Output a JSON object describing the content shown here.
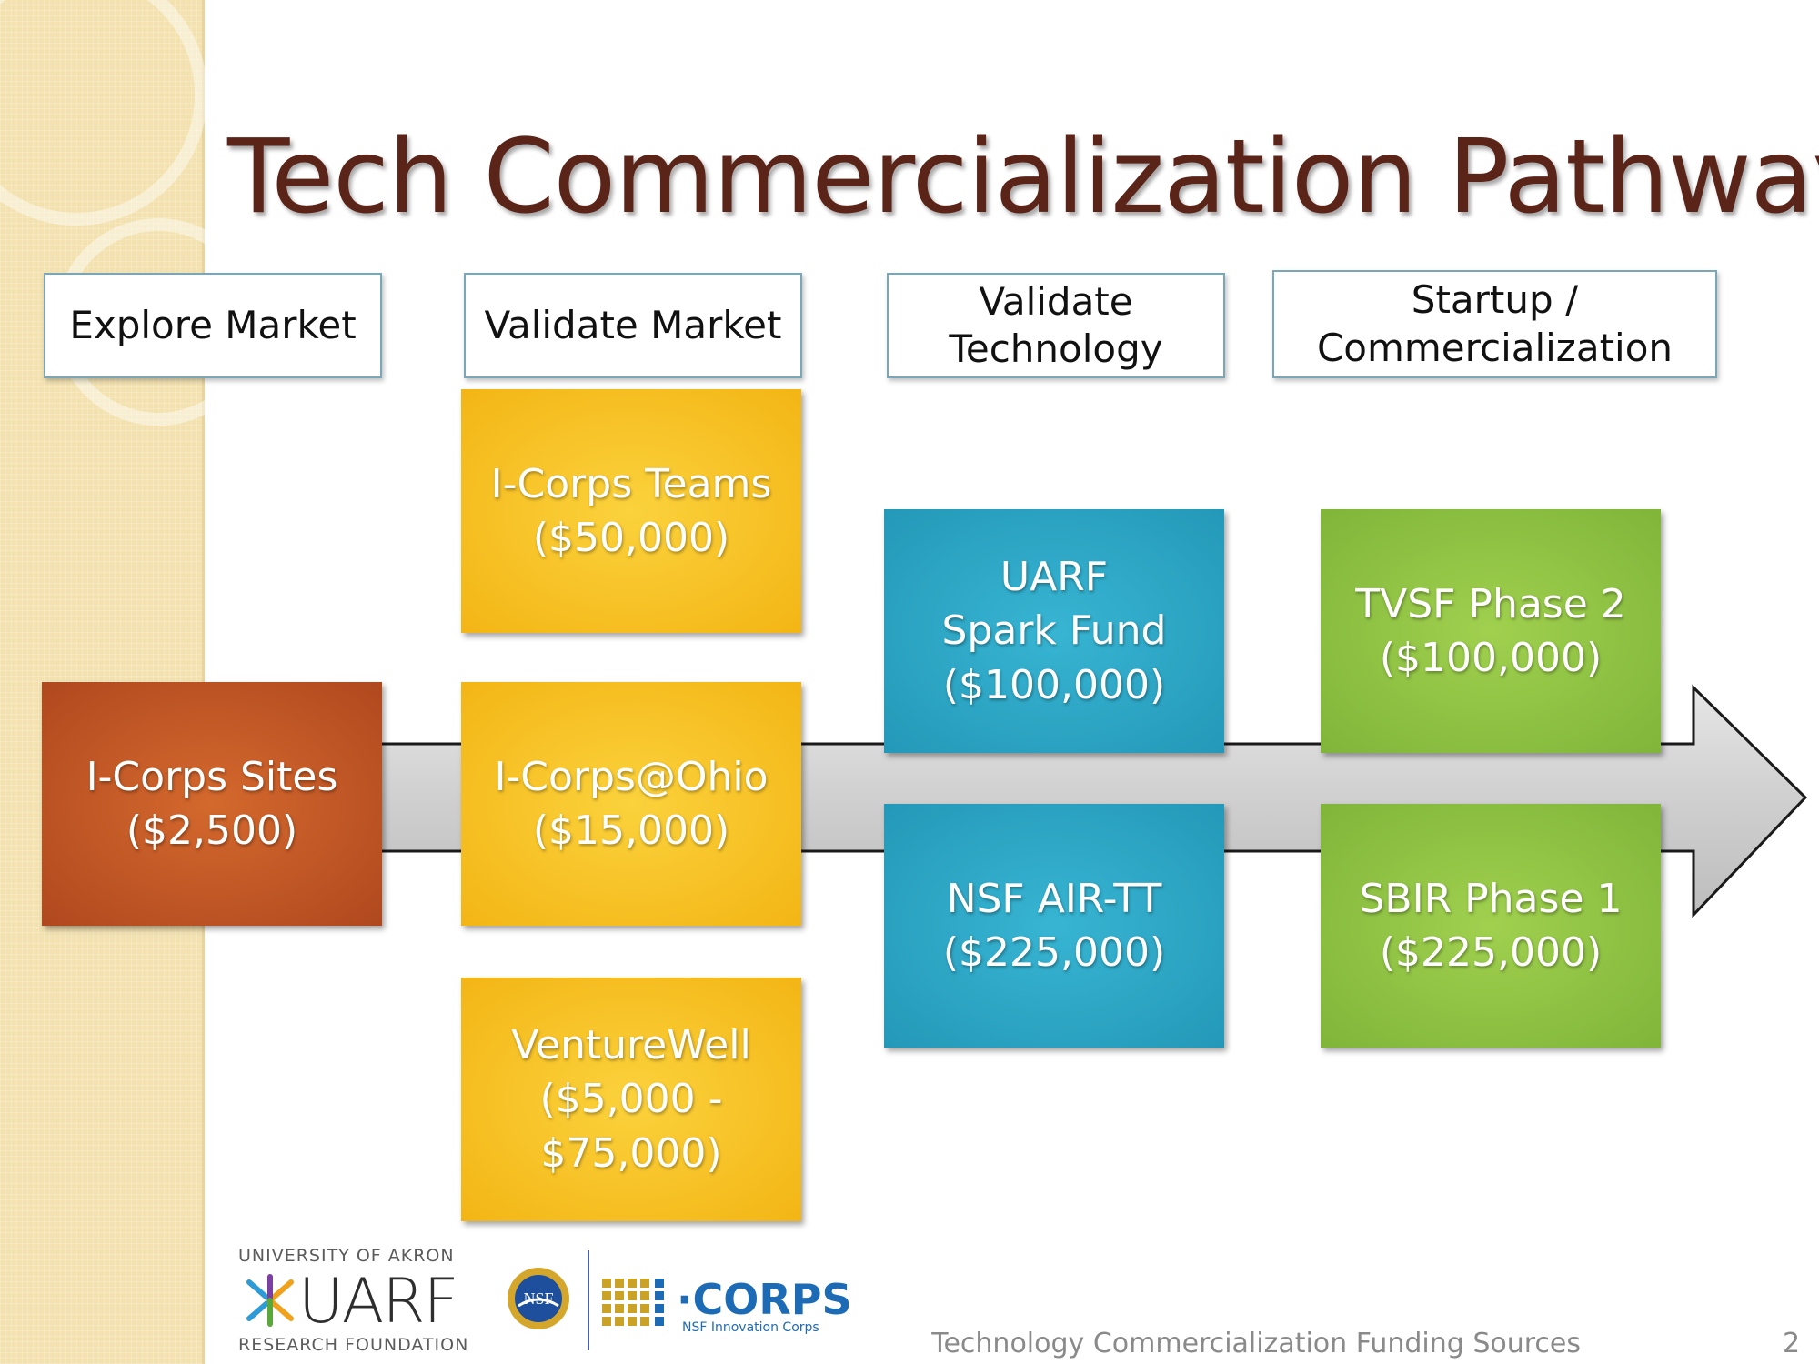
{
  "slide": {
    "title": "Tech Commercialization Pathway",
    "footer_text": "Technology Commercialization Funding Sources",
    "page_number": "2"
  },
  "stages": [
    {
      "label": "Explore Market"
    },
    {
      "label": "Validate Market"
    },
    {
      "label": "Validate\nTechnology"
    },
    {
      "label": "Startup /\nCommercialization"
    }
  ],
  "funding_boxes": {
    "icorps_sites": "I-Corps Sites\n($2,500)",
    "icorps_teams": "I-Corps Teams\n($50,000)",
    "icorps_ohio": "I-Corps@Ohio\n($15,000)",
    "venturewell": "VentureWell\n($5,000 -\n$75,000)",
    "uarf_spark": "UARF\nSpark Fund\n($100,000)",
    "nsf_air_tt": "NSF AIR-TT\n($225,000)",
    "tvsf_phase2": "TVSF Phase 2\n($100,000)",
    "sbir_phase1": "SBIR Phase 1\n($225,000)"
  },
  "logos": {
    "uarf_top": "UNIVERSITY OF AKRON",
    "uarf_word": "UARF",
    "uarf_bottom": "RESEARCH FOUNDATION",
    "nsf_word": "NSF",
    "icorps_word": "·CORPS",
    "icorps_sub": "NSF Innovation Corps"
  },
  "colors": {
    "title": "#5a2418",
    "explore": "#b84f22",
    "validate_market": "#f6bf1f",
    "validate_technology": "#2aa3c2",
    "startup": "#8cc041",
    "side_band": "#f3e2b0"
  }
}
